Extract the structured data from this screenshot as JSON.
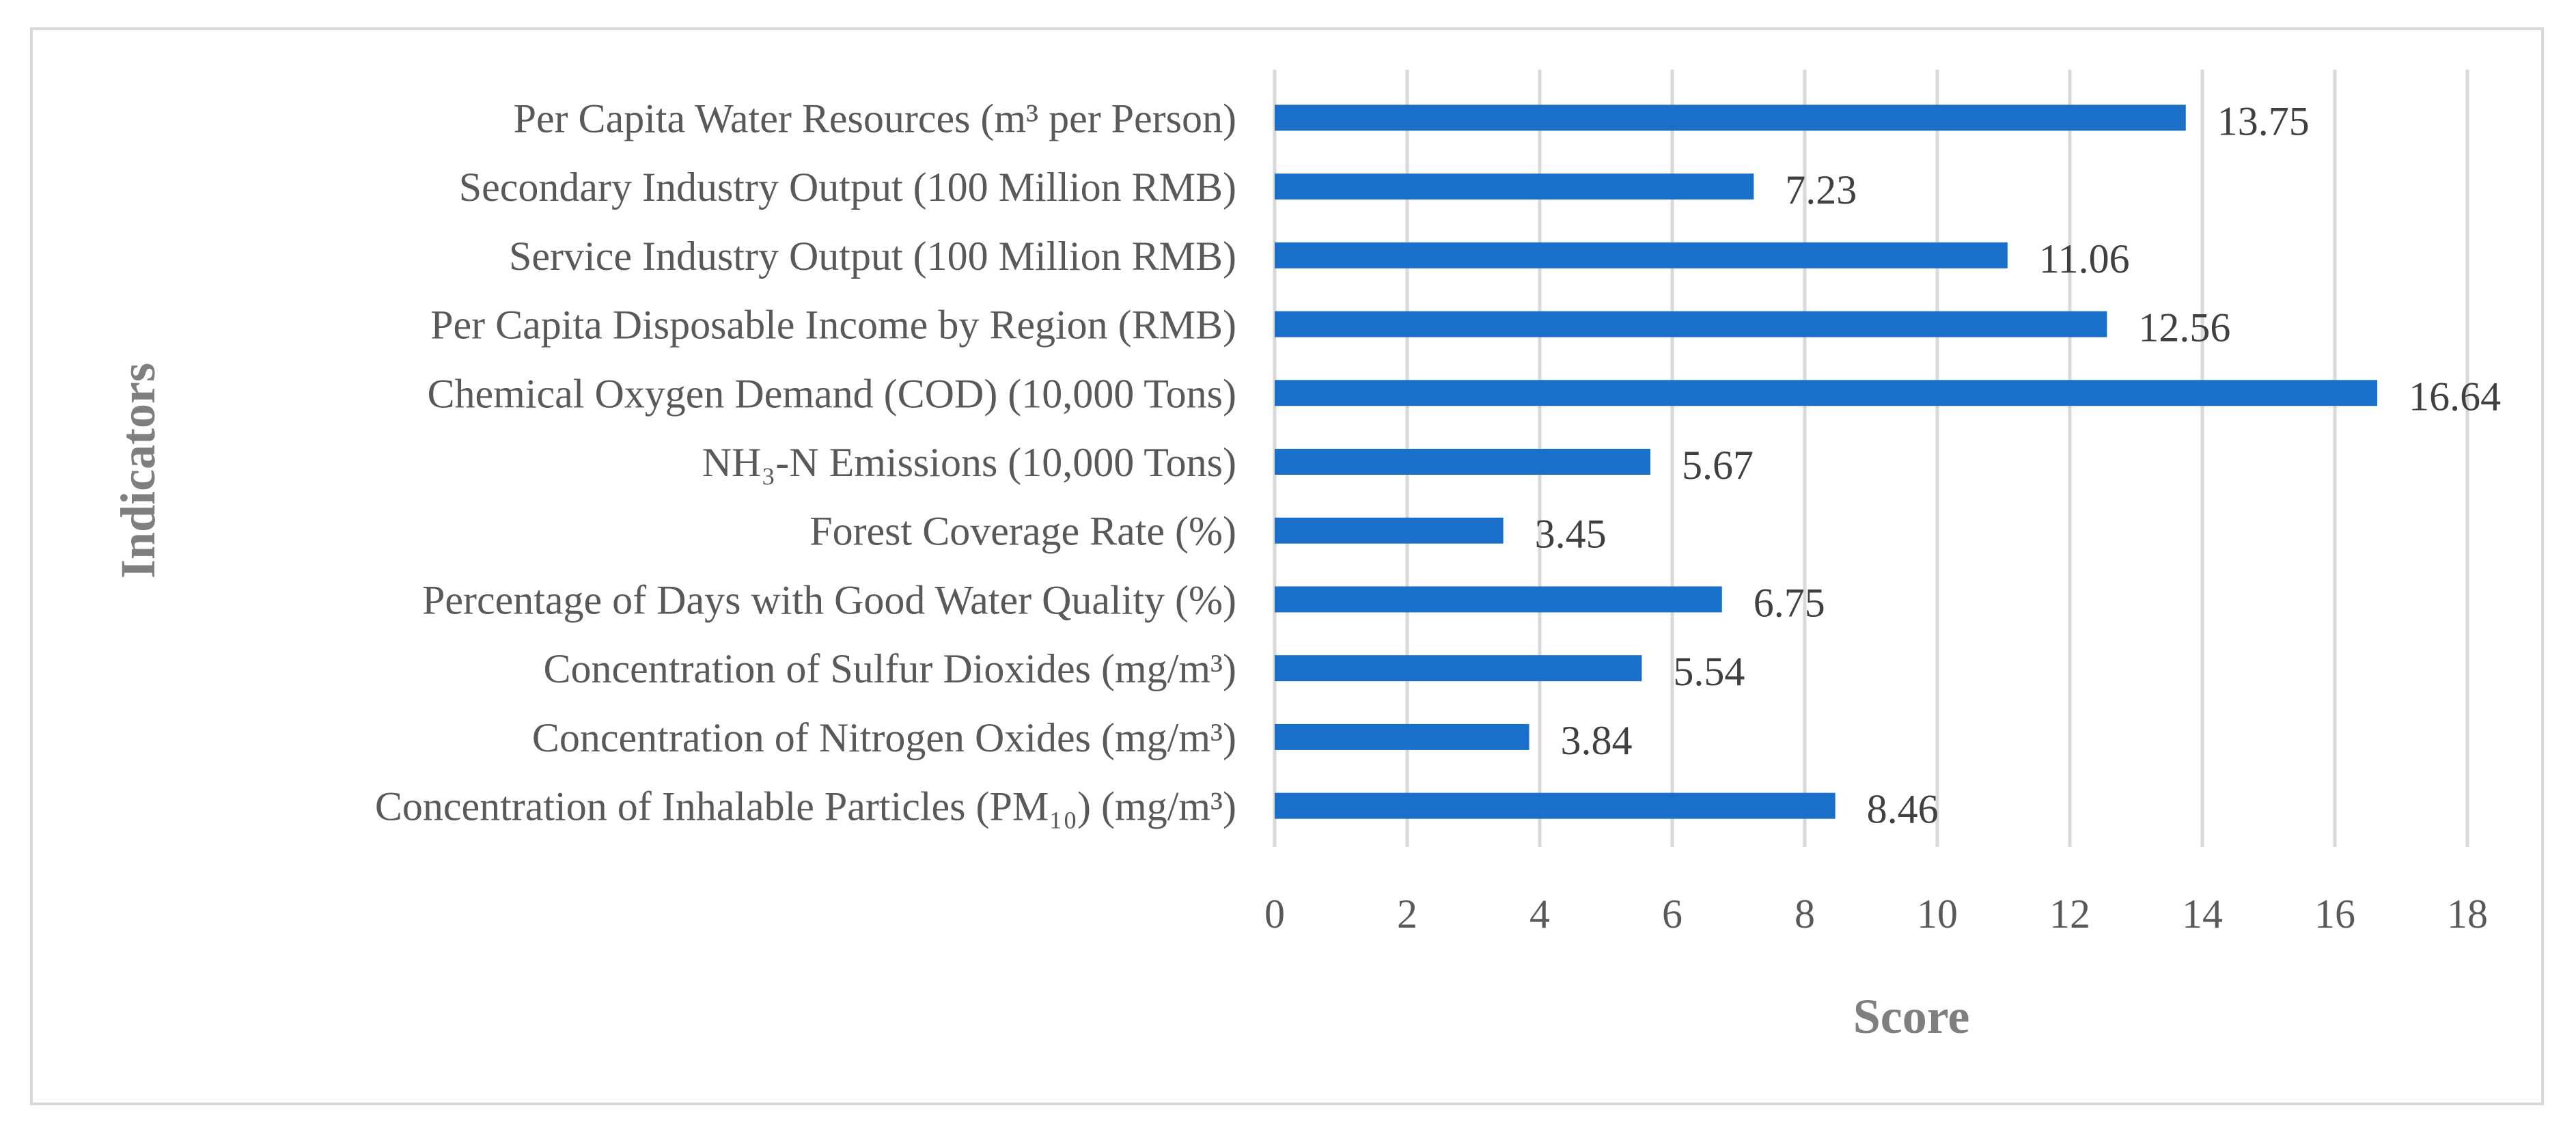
{
  "chart_data": {
    "type": "bar",
    "orientation": "horizontal",
    "title": "",
    "xlabel": "Score",
    "ylabel": "Indicators",
    "xlim": [
      0,
      18
    ],
    "xticks": [
      0,
      2,
      4,
      6,
      8,
      10,
      12,
      14,
      16,
      18
    ],
    "grid": true,
    "bar_color": "#1a6fc9",
    "categories": [
      "Per Capita Water Resources (m³ per Person)",
      "Secondary Industry Output (100 Million RMB)",
      "Service Industry Output (100 Million RMB)",
      "Per Capita Disposable Income by Region (RMB)",
      "Chemical Oxygen Demand (COD) (10,000 Tons)",
      "NH₃-N Emissions (10,000 Tons)",
      "Forest Coverage Rate (%)",
      "Percentage of Days with Good Water Quality (%)",
      "Concentration of Sulfur Dioxides (mg/m³)",
      "Concentration of Nitrogen Oxides (mg/m³)",
      "Concentration of Inhalable Particles (PM₁₀) (mg/m³)"
    ],
    "values": [
      13.75,
      7.23,
      11.06,
      12.56,
      16.64,
      5.67,
      3.45,
      6.75,
      5.54,
      3.84,
      8.46
    ],
    "data_labels": [
      "13.75",
      "7.23",
      "11.06",
      "12.56",
      "16.64",
      "5.67",
      "3.45",
      "6.75",
      "5.54",
      "3.84",
      "8.46"
    ]
  }
}
